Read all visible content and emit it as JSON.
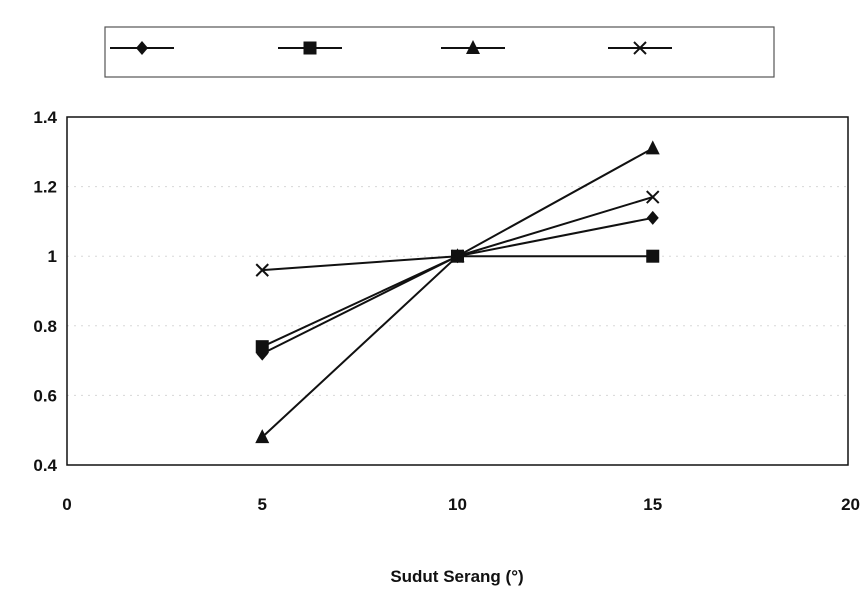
{
  "chart_data": {
    "type": "line",
    "title": "",
    "xlabel": "Sudut Serang (°)",
    "ylabel": "",
    "xlim": [
      0,
      20
    ],
    "ylim": [
      0.4,
      1.4
    ],
    "xticks": [
      0,
      5,
      10,
      15,
      20
    ],
    "yticks": [
      0.4,
      0.6,
      0.8,
      1,
      1.2,
      1.4
    ],
    "xtick_labels": [
      "0",
      "5",
      "10",
      "15",
      "20"
    ],
    "ytick_labels": [
      "0.4",
      "0.6",
      "0.8",
      "1",
      "1.2",
      "1.4"
    ],
    "grid": true,
    "legend_position": "top",
    "series": [
      {
        "marker": "diamond",
        "x": [
          5,
          10,
          15
        ],
        "values": [
          0.72,
          1.0,
          1.11
        ]
      },
      {
        "marker": "square",
        "x": [
          5,
          10,
          15
        ],
        "values": [
          0.74,
          1.0,
          1.0
        ]
      },
      {
        "marker": "triangle",
        "x": [
          5,
          10,
          15
        ],
        "values": [
          0.48,
          1.0,
          1.31
        ]
      },
      {
        "marker": "x",
        "x": [
          5,
          10,
          15
        ],
        "values": [
          0.96,
          1.0,
          1.17
        ]
      }
    ]
  }
}
